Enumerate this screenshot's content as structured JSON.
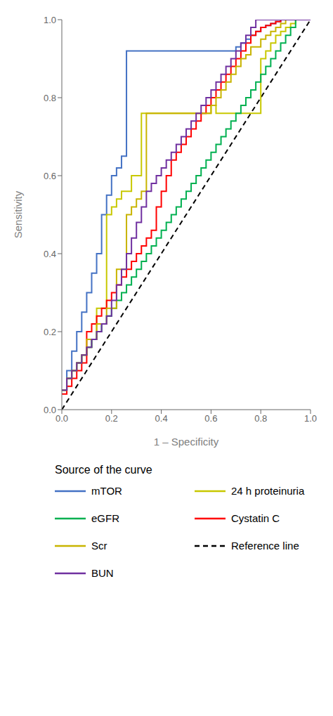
{
  "chart_data": {
    "type": "line",
    "title": "",
    "xlabel": "1 – Specificity",
    "ylabel": "Sensitivity",
    "legend_title": "Source of the curve",
    "xlim": [
      0.0,
      1.0
    ],
    "ylim": [
      0.0,
      1.0
    ],
    "xticks": [
      {
        "value": 0.0,
        "label": "0.0"
      },
      0.2,
      0.4,
      0.6,
      0.8,
      {
        "value": 1.0,
        "label": "1.0"
      }
    ],
    "yticks": [
      {
        "value": 0.0,
        "label": "0.0"
      },
      0.2,
      0.4,
      0.6,
      0.8,
      {
        "value": 1.0,
        "label": "1.0"
      }
    ],
    "grid": false,
    "series": [
      {
        "name": "mTOR",
        "color": "#4472C4",
        "line_style": "solid",
        "x": [
          0.0,
          0.02,
          0.02,
          0.04,
          0.04,
          0.06,
          0.06,
          0.08,
          0.08,
          0.1,
          0.1,
          0.12,
          0.12,
          0.14,
          0.14,
          0.16,
          0.16,
          0.18,
          0.18,
          0.2,
          0.2,
          0.22,
          0.22,
          0.24,
          0.24,
          0.26,
          0.26,
          0.7,
          0.7,
          0.72,
          0.72,
          0.74,
          0.74,
          0.76,
          0.76,
          0.78,
          0.78,
          0.8,
          0.8,
          0.82,
          0.82,
          0.84,
          0.84,
          0.86,
          0.86,
          0.88,
          0.88,
          0.9,
          0.9,
          0.92,
          0.92,
          0.94,
          0.94,
          0.96,
          0.96,
          0.98,
          0.98,
          1.0
        ],
        "values": [
          0.05,
          0.05,
          0.1,
          0.1,
          0.15,
          0.15,
          0.2,
          0.2,
          0.25,
          0.25,
          0.3,
          0.3,
          0.35,
          0.35,
          0.4,
          0.4,
          0.5,
          0.5,
          0.55,
          0.55,
          0.6,
          0.6,
          0.62,
          0.62,
          0.65,
          0.65,
          0.92,
          0.92,
          0.93,
          0.93,
          0.94,
          0.94,
          0.95,
          0.95,
          0.96,
          0.96,
          0.97,
          0.97,
          0.98,
          0.98,
          0.985,
          0.985,
          0.99,
          0.99,
          0.995,
          0.995,
          1.0,
          1.0,
          1.0,
          1.0,
          1.0,
          1.0,
          1.0,
          1.0,
          1.0,
          1.0,
          1.0,
          1.0
        ]
      },
      {
        "name": "24 h proteinuria",
        "color": "#C8C800",
        "line_style": "solid",
        "x": [
          0.0,
          0.02,
          0.02,
          0.04,
          0.04,
          0.06,
          0.06,
          0.08,
          0.08,
          0.1,
          0.1,
          0.12,
          0.12,
          0.14,
          0.14,
          0.18,
          0.18,
          0.2,
          0.2,
          0.22,
          0.22,
          0.24,
          0.24,
          0.28,
          0.28,
          0.32,
          0.32,
          0.6,
          0.6,
          0.62,
          0.62,
          0.8,
          0.8,
          0.82,
          0.82,
          0.84,
          0.84,
          0.86,
          0.86,
          0.88,
          0.88,
          0.9,
          0.9,
          0.92,
          0.92,
          0.94,
          0.94,
          0.96,
          0.96,
          0.98,
          0.98,
          1.0
        ],
        "values": [
          0.05,
          0.05,
          0.08,
          0.08,
          0.1,
          0.1,
          0.12,
          0.12,
          0.14,
          0.14,
          0.16,
          0.16,
          0.18,
          0.18,
          0.26,
          0.26,
          0.5,
          0.5,
          0.52,
          0.52,
          0.54,
          0.54,
          0.56,
          0.56,
          0.6,
          0.6,
          0.76,
          0.76,
          0.78,
          0.78,
          0.76,
          0.76,
          0.9,
          0.9,
          0.92,
          0.92,
          0.94,
          0.94,
          0.96,
          0.96,
          0.97,
          0.97,
          0.98,
          0.98,
          0.99,
          0.99,
          1.0,
          1.0,
          1.0,
          1.0,
          1.0,
          1.0
        ]
      },
      {
        "name": "eGFR",
        "color": "#00B050",
        "line_style": "solid",
        "x": [
          0.0,
          0.02,
          0.02,
          0.04,
          0.04,
          0.06,
          0.06,
          0.08,
          0.08,
          0.1,
          0.1,
          0.12,
          0.12,
          0.14,
          0.14,
          0.16,
          0.16,
          0.18,
          0.18,
          0.2,
          0.2,
          0.22,
          0.22,
          0.24,
          0.24,
          0.26,
          0.26,
          0.28,
          0.28,
          0.3,
          0.3,
          0.32,
          0.32,
          0.34,
          0.34,
          0.36,
          0.36,
          0.38,
          0.38,
          0.4,
          0.4,
          0.42,
          0.42,
          0.44,
          0.44,
          0.46,
          0.46,
          0.48,
          0.48,
          0.5,
          0.5,
          0.52,
          0.52,
          0.54,
          0.54,
          0.56,
          0.56,
          0.58,
          0.58,
          0.6,
          0.6,
          0.62,
          0.62,
          0.64,
          0.64,
          0.66,
          0.66,
          0.68,
          0.68,
          0.7,
          0.7,
          0.72,
          0.72,
          0.74,
          0.74,
          0.76,
          0.76,
          0.78,
          0.78,
          0.8,
          0.8,
          0.82,
          0.82,
          0.84,
          0.84,
          0.86,
          0.86,
          0.88,
          0.88,
          0.9,
          0.9,
          0.92,
          0.92,
          0.94,
          0.94,
          0.96,
          0.96,
          0.98,
          0.98,
          1.0
        ],
        "values": [
          0.05,
          0.05,
          0.08,
          0.08,
          0.1,
          0.1,
          0.12,
          0.12,
          0.14,
          0.14,
          0.16,
          0.16,
          0.18,
          0.18,
          0.2,
          0.2,
          0.22,
          0.22,
          0.24,
          0.24,
          0.26,
          0.26,
          0.28,
          0.28,
          0.3,
          0.3,
          0.32,
          0.32,
          0.34,
          0.34,
          0.36,
          0.36,
          0.38,
          0.38,
          0.4,
          0.4,
          0.42,
          0.42,
          0.44,
          0.44,
          0.46,
          0.46,
          0.48,
          0.48,
          0.5,
          0.5,
          0.52,
          0.52,
          0.54,
          0.54,
          0.56,
          0.56,
          0.58,
          0.58,
          0.6,
          0.6,
          0.62,
          0.62,
          0.64,
          0.64,
          0.66,
          0.66,
          0.68,
          0.68,
          0.7,
          0.7,
          0.72,
          0.72,
          0.74,
          0.74,
          0.76,
          0.76,
          0.78,
          0.78,
          0.8,
          0.8,
          0.82,
          0.82,
          0.84,
          0.84,
          0.86,
          0.86,
          0.88,
          0.88,
          0.9,
          0.9,
          0.92,
          0.92,
          0.94,
          0.94,
          0.96,
          0.96,
          0.98,
          0.98,
          1.0,
          1.0,
          1.0,
          1.0,
          1.0,
          1.0
        ]
      },
      {
        "name": "Cystatin C",
        "color": "#FF0000",
        "line_style": "solid",
        "x": [
          0.0,
          0.02,
          0.02,
          0.04,
          0.04,
          0.06,
          0.06,
          0.08,
          0.08,
          0.1,
          0.1,
          0.12,
          0.12,
          0.14,
          0.14,
          0.16,
          0.16,
          0.18,
          0.18,
          0.2,
          0.2,
          0.22,
          0.22,
          0.24,
          0.24,
          0.26,
          0.26,
          0.28,
          0.28,
          0.3,
          0.3,
          0.32,
          0.32,
          0.34,
          0.34,
          0.36,
          0.36,
          0.38,
          0.38,
          0.4,
          0.4,
          0.42,
          0.42,
          0.44,
          0.44,
          0.46,
          0.46,
          0.48,
          0.48,
          0.5,
          0.5,
          0.52,
          0.52,
          0.54,
          0.54,
          0.56,
          0.56,
          0.58,
          0.58,
          0.6,
          0.6,
          0.62,
          0.62,
          0.64,
          0.64,
          0.66,
          0.66,
          0.68,
          0.68,
          0.7,
          0.7,
          0.72,
          0.72,
          0.74,
          0.74,
          0.76,
          0.76,
          0.78,
          0.78,
          0.8,
          0.8,
          0.82,
          0.82,
          0.84,
          0.84,
          0.86,
          0.86,
          0.88,
          0.88,
          0.9,
          0.9,
          0.92,
          0.92,
          0.94,
          0.94,
          0.96,
          0.96,
          0.98,
          0.98,
          1.0
        ],
        "values": [
          0.04,
          0.04,
          0.06,
          0.06,
          0.08,
          0.08,
          0.1,
          0.1,
          0.12,
          0.12,
          0.2,
          0.2,
          0.22,
          0.22,
          0.24,
          0.24,
          0.26,
          0.26,
          0.28,
          0.28,
          0.3,
          0.3,
          0.32,
          0.32,
          0.34,
          0.34,
          0.36,
          0.36,
          0.38,
          0.38,
          0.4,
          0.4,
          0.42,
          0.42,
          0.44,
          0.44,
          0.46,
          0.46,
          0.52,
          0.52,
          0.56,
          0.56,
          0.6,
          0.6,
          0.64,
          0.64,
          0.66,
          0.66,
          0.68,
          0.68,
          0.7,
          0.7,
          0.72,
          0.72,
          0.74,
          0.74,
          0.76,
          0.76,
          0.78,
          0.78,
          0.8,
          0.8,
          0.82,
          0.82,
          0.84,
          0.84,
          0.86,
          0.86,
          0.88,
          0.88,
          0.9,
          0.9,
          0.92,
          0.92,
          0.94,
          0.94,
          0.96,
          0.96,
          0.97,
          0.97,
          0.98,
          0.98,
          0.985,
          0.985,
          0.99,
          0.99,
          0.995,
          0.995,
          1.0,
          1.0,
          1.0,
          1.0,
          1.0,
          1.0,
          1.0,
          1.0,
          1.0,
          1.0,
          1.0,
          1.0
        ]
      },
      {
        "name": "Scr",
        "color": "#C8B400",
        "line_style": "solid",
        "x": [
          0.0,
          0.02,
          0.02,
          0.04,
          0.04,
          0.06,
          0.06,
          0.08,
          0.08,
          0.1,
          0.1,
          0.14,
          0.14,
          0.18,
          0.18,
          0.22,
          0.22,
          0.26,
          0.26,
          0.28,
          0.28,
          0.3,
          0.3,
          0.32,
          0.32,
          0.34,
          0.34,
          0.6,
          0.6,
          0.62,
          0.62,
          0.64,
          0.64,
          0.66,
          0.66,
          0.68,
          0.68,
          0.7,
          0.7,
          0.72,
          0.72,
          0.74,
          0.74,
          0.76,
          0.76,
          0.8,
          0.8,
          0.82,
          0.82,
          0.84,
          0.84,
          0.86,
          0.86,
          0.88,
          0.88,
          0.9,
          0.9,
          0.92,
          0.92,
          0.94,
          0.94,
          0.96,
          0.96,
          0.98,
          0.98,
          1.0
        ],
        "values": [
          0.05,
          0.05,
          0.08,
          0.08,
          0.1,
          0.1,
          0.12,
          0.12,
          0.14,
          0.14,
          0.18,
          0.18,
          0.22,
          0.22,
          0.26,
          0.26,
          0.36,
          0.36,
          0.5,
          0.5,
          0.52,
          0.52,
          0.54,
          0.54,
          0.56,
          0.56,
          0.76,
          0.76,
          0.78,
          0.78,
          0.8,
          0.8,
          0.82,
          0.82,
          0.84,
          0.84,
          0.86,
          0.86,
          0.88,
          0.88,
          0.9,
          0.9,
          0.91,
          0.91,
          0.93,
          0.93,
          0.95,
          0.95,
          0.96,
          0.96,
          0.97,
          0.97,
          0.98,
          0.98,
          0.99,
          0.99,
          1.0,
          1.0,
          1.0,
          1.0,
          1.0,
          1.0,
          1.0,
          1.0,
          1.0,
          1.0
        ]
      },
      {
        "name": "Reference line",
        "color": "#000000",
        "line_style": "dashed",
        "x": [
          0,
          1
        ],
        "values": [
          0,
          1
        ]
      },
      {
        "name": "BUN",
        "color": "#7030A0",
        "line_style": "solid",
        "x": [
          0.0,
          0.02,
          0.02,
          0.04,
          0.04,
          0.06,
          0.06,
          0.08,
          0.08,
          0.1,
          0.1,
          0.12,
          0.12,
          0.14,
          0.14,
          0.16,
          0.16,
          0.18,
          0.18,
          0.2,
          0.2,
          0.22,
          0.22,
          0.24,
          0.24,
          0.26,
          0.26,
          0.28,
          0.28,
          0.3,
          0.3,
          0.32,
          0.32,
          0.34,
          0.34,
          0.36,
          0.36,
          0.38,
          0.38,
          0.4,
          0.4,
          0.42,
          0.42,
          0.44,
          0.44,
          0.46,
          0.46,
          0.48,
          0.48,
          0.5,
          0.5,
          0.52,
          0.52,
          0.54,
          0.54,
          0.56,
          0.56,
          0.58,
          0.58,
          0.6,
          0.6,
          0.62,
          0.62,
          0.64,
          0.64,
          0.66,
          0.66,
          0.68,
          0.68,
          0.7,
          0.7,
          0.72,
          0.72,
          0.74,
          0.74,
          0.76,
          0.76,
          0.78,
          0.78,
          0.8,
          0.8,
          0.82,
          0.82,
          0.84,
          0.84,
          0.86,
          0.86,
          0.88,
          0.88,
          0.9,
          0.9,
          0.92,
          0.92,
          0.94,
          0.94,
          0.96,
          0.96,
          0.98,
          0.98,
          1.0
        ],
        "values": [
          0.05,
          0.05,
          0.08,
          0.08,
          0.1,
          0.1,
          0.12,
          0.12,
          0.14,
          0.14,
          0.16,
          0.16,
          0.18,
          0.18,
          0.2,
          0.2,
          0.22,
          0.22,
          0.24,
          0.24,
          0.28,
          0.28,
          0.32,
          0.32,
          0.36,
          0.36,
          0.4,
          0.4,
          0.44,
          0.44,
          0.48,
          0.48,
          0.52,
          0.52,
          0.56,
          0.56,
          0.58,
          0.58,
          0.6,
          0.6,
          0.62,
          0.62,
          0.64,
          0.64,
          0.66,
          0.66,
          0.68,
          0.68,
          0.7,
          0.7,
          0.72,
          0.72,
          0.74,
          0.74,
          0.76,
          0.76,
          0.78,
          0.78,
          0.8,
          0.8,
          0.82,
          0.82,
          0.84,
          0.84,
          0.86,
          0.86,
          0.88,
          0.88,
          0.9,
          0.9,
          0.92,
          0.92,
          0.94,
          0.94,
          0.96,
          0.96,
          0.98,
          0.98,
          1.0,
          1.0,
          1.0,
          1.0,
          1.0,
          1.0,
          1.0,
          1.0,
          1.0,
          1.0,
          1.0,
          1.0,
          1.0,
          1.0,
          1.0,
          1.0,
          1.0,
          1.0,
          1.0,
          1.0,
          1.0,
          1.0
        ]
      }
    ]
  }
}
